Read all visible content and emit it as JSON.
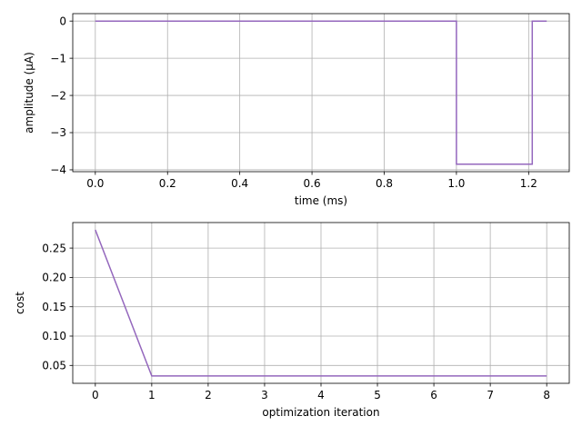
{
  "chart_data": [
    {
      "type": "line",
      "title": "",
      "xlabel": "time (ms)",
      "ylabel": "amplitude (µA)",
      "xlim": [
        -0.0625,
        1.3125
      ],
      "ylim": [
        -4.05,
        0.2
      ],
      "xticks": [
        0.0,
        0.2,
        0.4,
        0.6,
        0.8,
        1.0,
        1.2
      ],
      "xtick_labels": [
        "0.0",
        "0.2",
        "0.4",
        "0.6",
        "0.8",
        "1.0",
        "1.2"
      ],
      "yticks": [
        0,
        -1,
        -2,
        -3,
        -4
      ],
      "ytick_labels": [
        "0",
        "−1",
        "−2",
        "−3",
        "−4"
      ],
      "grid": true,
      "series": [
        {
          "color": "#9467bd",
          "x": [
            0.0,
            1.0,
            1.0,
            1.21,
            1.21,
            1.25
          ],
          "y": [
            0.0,
            0.0,
            -3.85,
            -3.85,
            0.0,
            0.0
          ]
        }
      ]
    },
    {
      "type": "line",
      "title": "",
      "xlabel": "optimization iteration",
      "ylabel": "cost",
      "xlim": [
        -0.4,
        8.4
      ],
      "ylim": [
        0.0195,
        0.2935
      ],
      "xticks": [
        0,
        1,
        2,
        3,
        4,
        5,
        6,
        7,
        8
      ],
      "xtick_labels": [
        "0",
        "1",
        "2",
        "3",
        "4",
        "5",
        "6",
        "7",
        "8"
      ],
      "yticks": [
        0.05,
        0.1,
        0.15,
        0.2,
        0.25
      ],
      "ytick_labels": [
        "0.05",
        "0.10",
        "0.15",
        "0.20",
        "0.25"
      ],
      "grid": true,
      "series": [
        {
          "color": "#9467bd",
          "x": [
            0,
            1,
            2,
            3,
            4,
            5,
            6,
            7,
            8
          ],
          "y": [
            0.281,
            0.032,
            0.032,
            0.032,
            0.032,
            0.032,
            0.032,
            0.032,
            0.032
          ]
        }
      ]
    }
  ]
}
